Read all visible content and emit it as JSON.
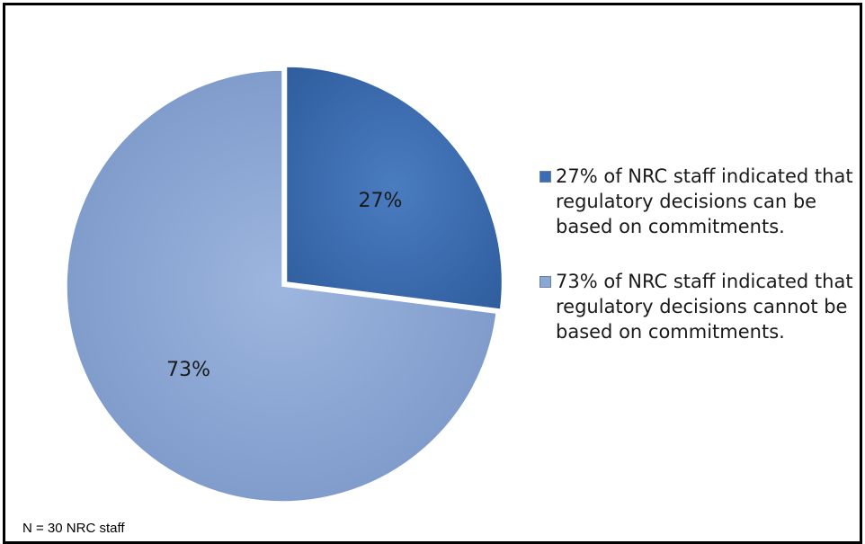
{
  "chart_data": {
    "type": "pie",
    "slices": [
      {
        "label": "27%",
        "value": 27,
        "color": "#3a6db3"
      },
      {
        "label": "73%",
        "value": 73,
        "color": "#8aa7d6"
      }
    ],
    "legend": [
      {
        "text": "27% of NRC staff indicated that regulatory decisions can be based on commitments.",
        "color": "#3a6db3"
      },
      {
        "text": "73% of NRC staff indicated that regulatory decisions cannot be based on commitments.",
        "color": "#8aa7d6"
      }
    ],
    "legend_position": "right",
    "note": "N = 30 NRC staff"
  }
}
